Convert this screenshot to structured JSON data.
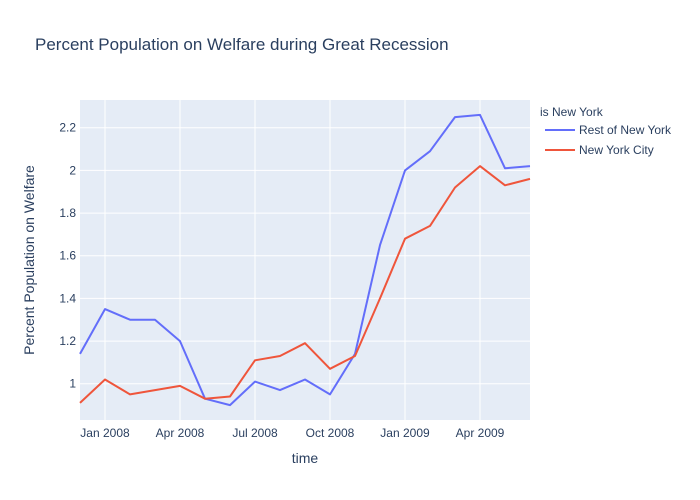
{
  "chart_data": {
    "type": "line",
    "title": "Percent Population on Welfare during Great Recession",
    "xlabel": "time",
    "ylabel": "Percent Population on Welfare",
    "legend_title": "is New York",
    "legend_position": "top-right",
    "grid": true,
    "x": [
      "2007-12",
      "2008-01",
      "2008-02",
      "2008-03",
      "2008-04",
      "2008-05",
      "2008-06",
      "2008-07",
      "2008-08",
      "2008-09",
      "2008-10",
      "2008-11",
      "2008-12",
      "2009-01",
      "2009-02",
      "2009-03",
      "2009-04",
      "2009-05",
      "2009-06"
    ],
    "x_ticks": [
      "Jan 2008",
      "Apr 2008",
      "Jul 2008",
      "Oct 2008",
      "Jan 2009",
      "Apr 2009"
    ],
    "ylim": [
      0.83,
      2.33
    ],
    "y_ticks": [
      "1",
      "1.2",
      "1.4",
      "1.6",
      "1.8",
      "2",
      "2.2"
    ],
    "series": [
      {
        "name": "Rest of New York",
        "color": "#636efa",
        "values": [
          1.14,
          1.35,
          1.3,
          1.3,
          1.2,
          0.93,
          0.9,
          1.01,
          0.97,
          1.02,
          0.95,
          1.14,
          1.65,
          2.0,
          2.09,
          2.25,
          2.26,
          2.01,
          2.02
        ]
      },
      {
        "name": "New York City",
        "color": "#ef553b",
        "values": [
          0.91,
          1.02,
          0.95,
          0.97,
          0.99,
          0.93,
          0.94,
          1.11,
          1.13,
          1.19,
          1.07,
          1.13,
          1.4,
          1.68,
          1.74,
          1.92,
          2.02,
          1.93,
          1.96
        ]
      }
    ]
  }
}
